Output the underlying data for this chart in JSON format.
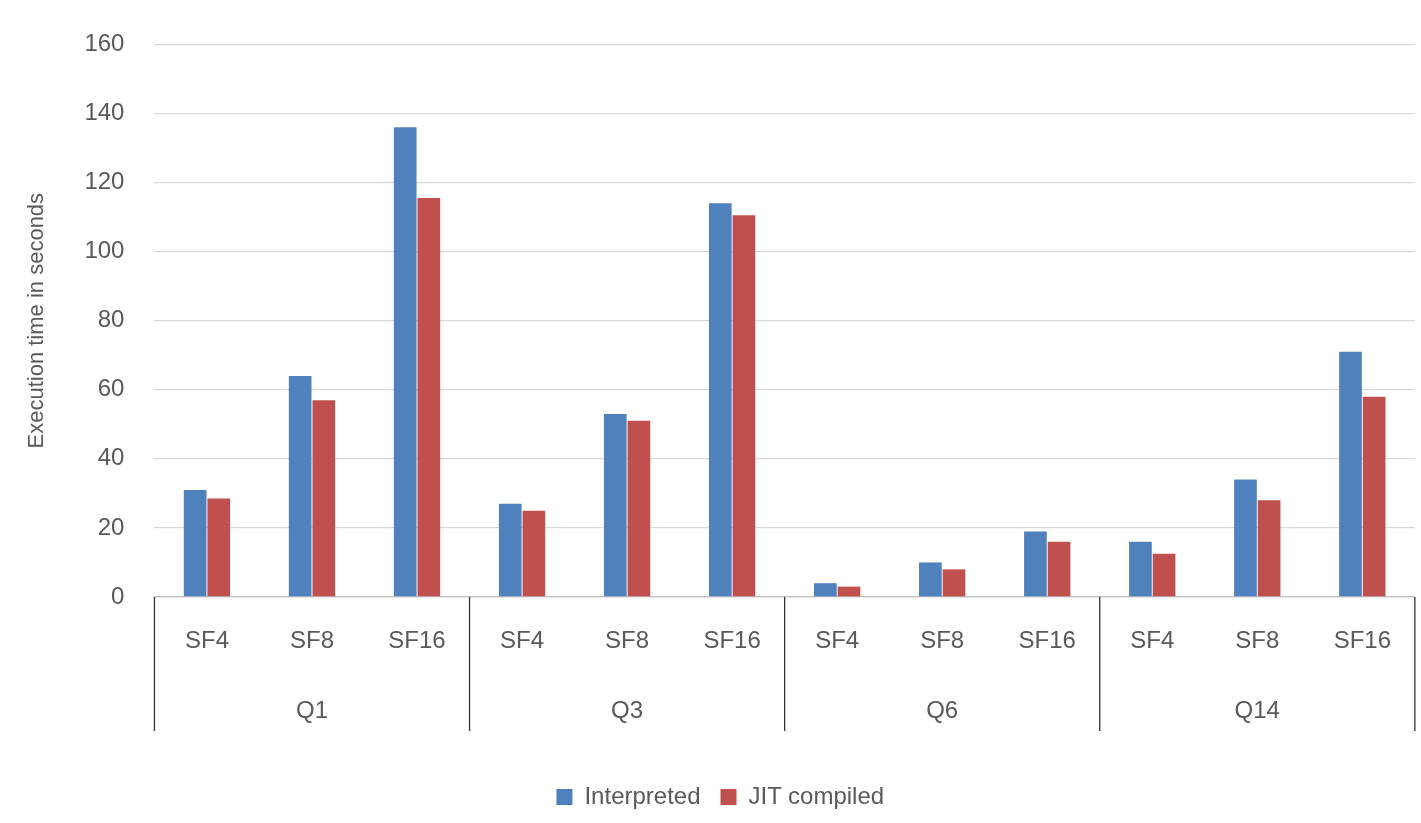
{
  "chart_data": {
    "type": "bar",
    "ylabel": "Execution time in seconds",
    "categories": [
      "SF4",
      "SF8",
      "SF16",
      "SF4",
      "SF8",
      "SF16",
      "SF4",
      "SF8",
      "SF16",
      "SF4",
      "SF8",
      "SF16"
    ],
    "series": [
      {
        "name": "Interpreted",
        "color": "#4f81bd",
        "values": [
          31,
          64,
          136,
          27,
          53,
          114,
          4,
          10,
          19,
          16,
          34,
          71
        ]
      },
      {
        "name": "JIT compiled",
        "color": "#c0504d",
        "values": [
          28.5,
          57,
          115.5,
          25,
          51,
          110.5,
          3,
          8,
          16,
          12.5,
          28,
          58
        ]
      }
    ],
    "annotations": [
      "Q1",
      "Q3",
      "Q6",
      "Q14"
    ],
    "ylim": [
      0,
      160
    ],
    "yticks": [
      0,
      20,
      40,
      60,
      80,
      100,
      120,
      140,
      160
    ],
    "grid": "y",
    "legend": "bottom"
  }
}
